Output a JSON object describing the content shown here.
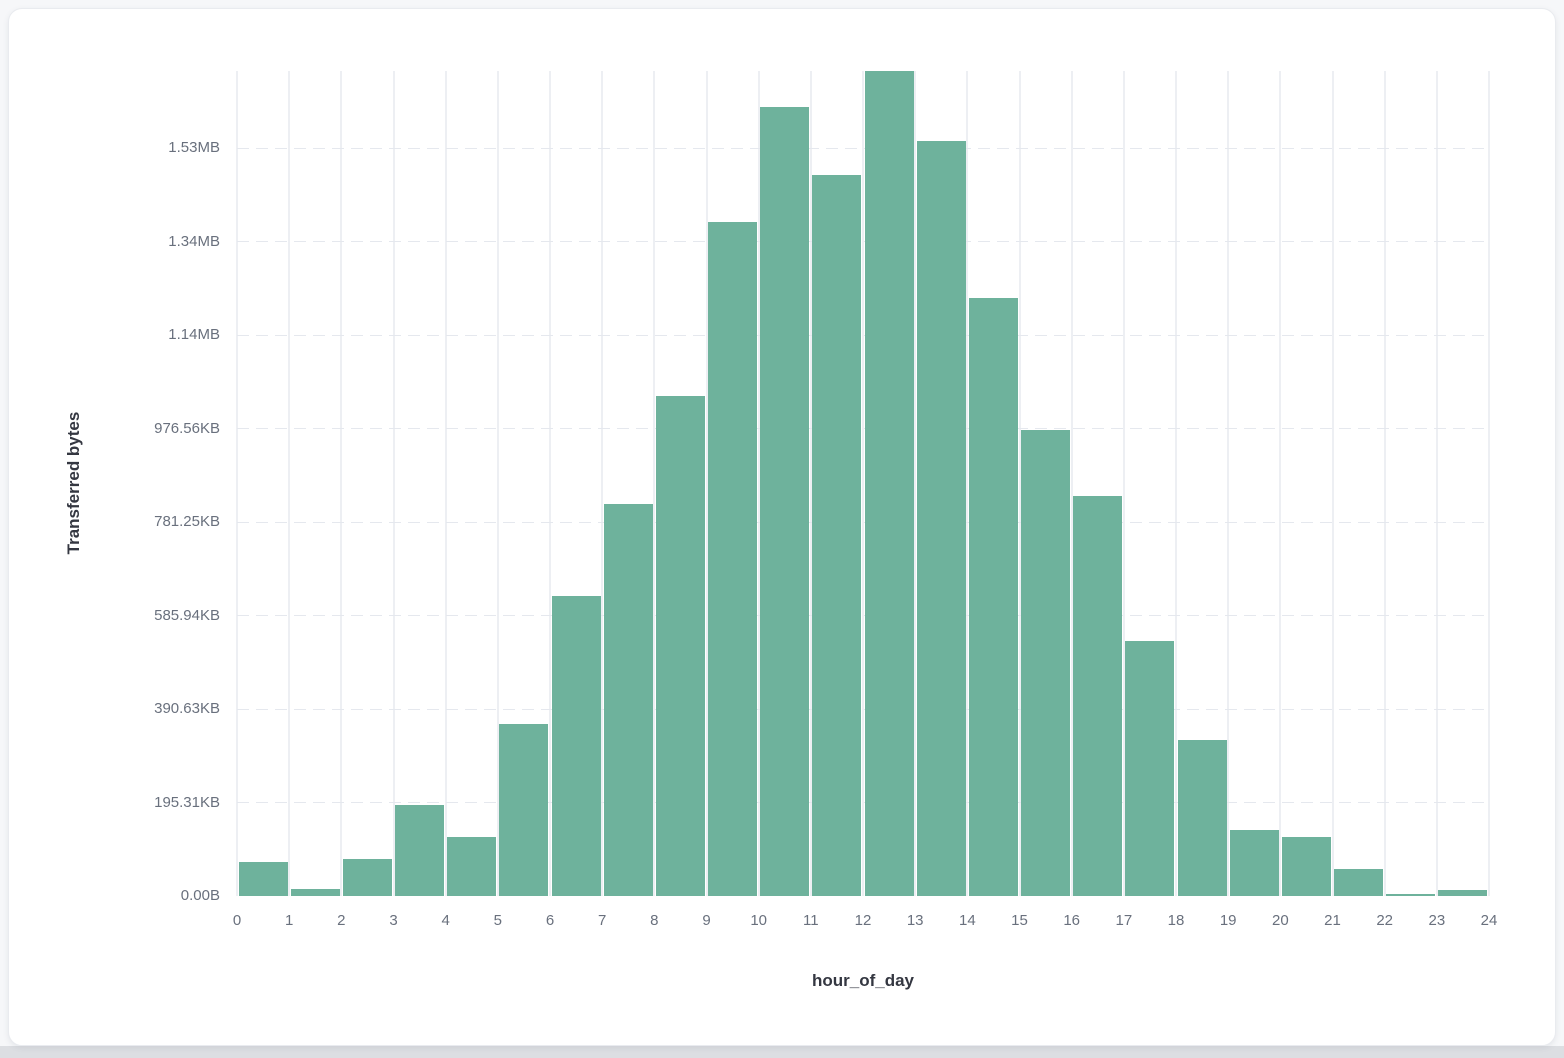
{
  "chart_data": {
    "type": "bar",
    "title": "",
    "xlabel": "hour_of_day",
    "ylabel": "Transferred bytes",
    "categories": [
      0,
      1,
      2,
      3,
      4,
      5,
      6,
      7,
      8,
      9,
      10,
      11,
      12,
      13,
      14,
      15,
      16,
      17,
      18,
      19,
      20,
      21,
      22,
      23
    ],
    "values": [
      72000,
      16000,
      79000,
      195000,
      126000,
      367000,
      641000,
      838000,
      1069000,
      1442000,
      1688000,
      1542000,
      1765000,
      1615000,
      1279000,
      997000,
      856000,
      545000,
      334000,
      141000,
      126000,
      58000,
      4500,
      12800
    ],
    "values_unit": "bytes",
    "ylim": [
      0,
      1765000
    ],
    "x_tick_labels": [
      "0",
      "1",
      "2",
      "3",
      "4",
      "5",
      "6",
      "7",
      "8",
      "9",
      "10",
      "11",
      "12",
      "13",
      "14",
      "15",
      "16",
      "17",
      "18",
      "19",
      "20",
      "21",
      "22",
      "23",
      "24"
    ],
    "y_ticks": [
      {
        "value": 0,
        "label": "0.00B"
      },
      {
        "value": 200000,
        "label": "195.31KB"
      },
      {
        "value": 400000,
        "label": "390.63KB"
      },
      {
        "value": 600000,
        "label": "585.94KB"
      },
      {
        "value": 800000,
        "label": "781.25KB"
      },
      {
        "value": 1000000,
        "label": "976.56KB"
      },
      {
        "value": 1200000,
        "label": "1.14MB"
      },
      {
        "value": 1400000,
        "label": "1.34MB"
      },
      {
        "value": 1600000,
        "label": "1.53MB"
      }
    ],
    "legend": {
      "visible": false
    },
    "grid": {
      "vertical_solid": true,
      "horizontal_dashed": true
    },
    "colors": {
      "bar": "#6eb29c",
      "v_gridline": "#edeff3",
      "h_gridline": "#e5e8ee",
      "tick_label": "#69707d",
      "axis_title": "#343741",
      "card_background": "#ffffff",
      "card_border": "#e9ebef",
      "page_background": "#f6f7f9",
      "page_bottom_strip": "#dcdee2"
    }
  }
}
